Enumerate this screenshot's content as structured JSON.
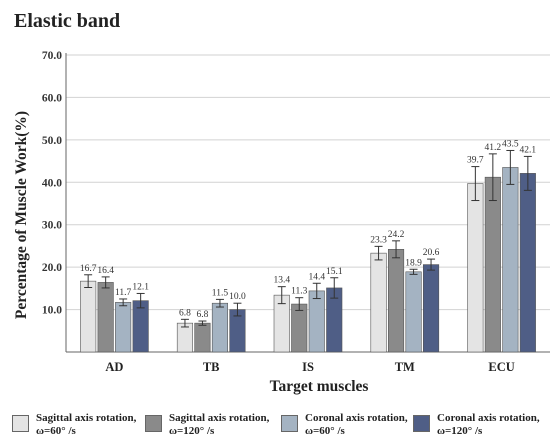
{
  "chart_data": {
    "type": "bar",
    "title": "Elastic band",
    "xlabel": "Target muscles",
    "ylabel": "Percentage of Muscle Work(%)",
    "ylim": [
      0,
      70
    ],
    "yticks": [
      "10.0",
      "20.0",
      "30.0",
      "40.0",
      "50.0",
      "60.0",
      "70.0"
    ],
    "grid": true,
    "legend_position": "bottom",
    "categories": [
      "AD",
      "TB",
      "IS",
      "TM",
      "ECU"
    ],
    "series": [
      {
        "name_line1": "Sagittal axis rotation,",
        "name_line2": "ω=60° /s",
        "color": "#e4e4e4",
        "values": [
          16.7,
          6.8,
          13.4,
          23.3,
          39.7
        ],
        "errors": [
          1.5,
          0.9,
          2.0,
          1.6,
          4.0
        ],
        "labels": [
          "16.7",
          "6.8",
          "13.4",
          "23.3",
          "39.7"
        ]
      },
      {
        "name_line1": "Sagittal axis rotation,",
        "name_line2": "ω=120° /s",
        "color": "#8a8a8a",
        "values": [
          16.4,
          6.8,
          11.3,
          24.2,
          41.2
        ],
        "errors": [
          1.3,
          0.5,
          1.5,
          2.0,
          5.5
        ],
        "labels": [
          "16.4",
          "6.8",
          "11.3",
          "24.2",
          "41.2"
        ]
      },
      {
        "name_line1": "Coronal axis rotation,",
        "name_line2": "ω=60° /s",
        "color": "#a4b3c2",
        "values": [
          11.7,
          11.5,
          14.4,
          18.9,
          43.5
        ],
        "errors": [
          0.8,
          0.9,
          1.8,
          0.6,
          4.0
        ],
        "labels": [
          "11.7",
          "11.5",
          "14.4",
          "18.9",
          "43.5"
        ]
      },
      {
        "name_line1": "Coronal axis rotation,",
        "name_line2": "ω=120° /s",
        "color": "#4f5e86",
        "values": [
          12.1,
          10.0,
          15.1,
          20.6,
          42.1
        ],
        "errors": [
          1.7,
          1.5,
          2.4,
          1.3,
          4.0
        ],
        "labels": [
          "12.1",
          "10.0",
          "15.1",
          "20.6",
          "42.1"
        ]
      }
    ]
  }
}
